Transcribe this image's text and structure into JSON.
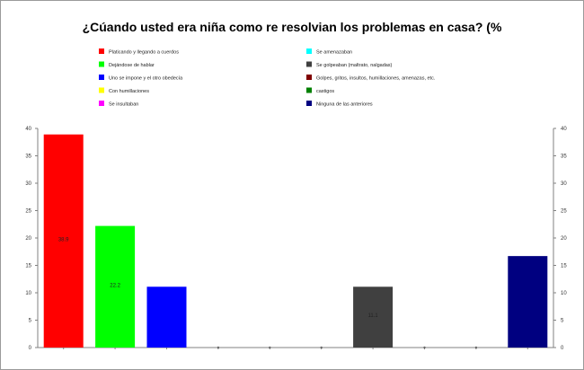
{
  "chart_data": {
    "type": "bar",
    "title": "¿Cúando usted era niña como re resolvian los problemas en casa? (%",
    "categories": [
      "Platicando y llegando a cuerdos",
      "Dejándose de hablar",
      "Uno se impone y el otro obedecía",
      "Con humillaciones",
      "Se insultaban",
      "Se amenazaban",
      "Se golpeaban (maltrato, nalgadas)",
      "Golpes, gritos, insultos, humillaciones, amenazas, etc.",
      "castigos",
      "Ninguna de las anteriores"
    ],
    "values": [
      38.9,
      22.2,
      11.1,
      0,
      0,
      0,
      11.1,
      0,
      0,
      16.7
    ],
    "data_labels": [
      "38.9",
      "22.2",
      "",
      "",
      "",
      "",
      "11.1",
      "",
      "",
      ""
    ],
    "colors": [
      "#ff0000",
      "#00ff00",
      "#0000ff",
      "#ffff00",
      "#ff00ff",
      "#00ffff",
      "#404040",
      "#800000",
      "#008000",
      "#000080"
    ],
    "ylim": [
      0,
      40
    ],
    "yticks": [
      0,
      5,
      10,
      15,
      20,
      25,
      30,
      35,
      40
    ],
    "grid": false,
    "legend": "top, two columns",
    "xlabel": "",
    "ylabel": ""
  }
}
